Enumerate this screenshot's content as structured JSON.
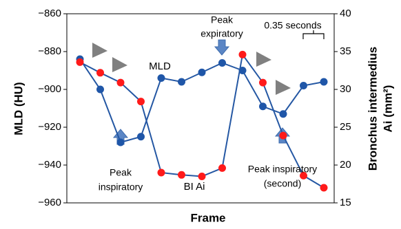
{
  "chart_data": {
    "type": "line",
    "x_label": "Frame",
    "y_label": "MLD (HU)",
    "y2_label": [
      "Bronchus intermedius",
      "Ai (mm²)"
    ],
    "categories": [
      null,
      null,
      null,
      null,
      null,
      null,
      null,
      null,
      null,
      null,
      null,
      null,
      null
    ],
    "line_color": "#2457a3",
    "series": [
      {
        "name": "MLD",
        "color": "#1f56a8",
        "label_color": "#3d8fd6",
        "values": [
          -884,
          -900,
          -928,
          -925,
          -894,
          -896,
          -891,
          -886,
          -890,
          -909,
          -913,
          -898,
          -896
        ]
      },
      {
        "name": "BI Ai",
        "color": "#ff1a1a",
        "label_color": "#ff1a1a",
        "axis": "y2",
        "values": [
          33.6,
          32.2,
          30.9,
          28.4,
          19.0,
          18.7,
          18.5,
          19.6,
          34.6,
          30.9,
          23.9,
          18.6,
          17.0
        ]
      }
    ],
    "ylim": [
      -960,
      -860
    ],
    "yticks": [
      {
        "value": -960,
        "label": "−960"
      },
      {
        "value": -940,
        "label": "−940"
      },
      {
        "value": -920,
        "label": "−920"
      },
      {
        "value": -900,
        "label": "−900"
      },
      {
        "value": -880,
        "label": "−880"
      },
      {
        "value": -860,
        "label": "−860"
      }
    ],
    "y2lim": [
      15,
      40
    ],
    "y2ticks": [
      15,
      20,
      25,
      30,
      35,
      40
    ],
    "annotations": [
      {
        "lines": [
          "Peak",
          "expiratory"
        ]
      },
      {
        "lines": [
          "0.35 seconds"
        ]
      },
      {
        "lines": [
          "Peak",
          "inspiratory"
        ]
      },
      {
        "lines": [
          "Peak inspiratory",
          "(second)"
        ]
      }
    ]
  }
}
